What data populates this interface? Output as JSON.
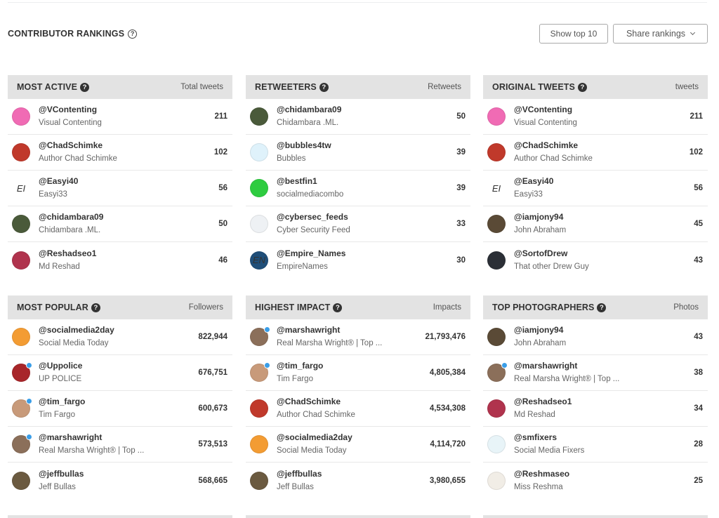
{
  "header": {
    "title": "CONTRIBUTOR RANKINGS",
    "show_top_label": "Show top 10",
    "share_label": "Share rankings"
  },
  "panels": [
    {
      "title": "MOST ACTIVE",
      "metric": "Total tweets",
      "rows": [
        {
          "handle": "@VContenting",
          "name": "Visual Contenting",
          "count": "211",
          "avatar_color": "#f06bb4",
          "avatar_text": "",
          "verified": false
        },
        {
          "handle": "@ChadSchimke",
          "name": "Author Chad Schimke",
          "count": "102",
          "avatar_color": "#c0392b",
          "avatar_text": "",
          "verified": false
        },
        {
          "handle": "@Easyi40",
          "name": "Easyi33",
          "count": "56",
          "avatar_color": "#ffffff",
          "avatar_text": "EI",
          "verified": false
        },
        {
          "handle": "@chidambara09",
          "name": "Chidambara .ML.",
          "count": "50",
          "avatar_color": "#4a5a3a",
          "avatar_text": "",
          "verified": false
        },
        {
          "handle": "@Reshadseo1",
          "name": "Md Reshad",
          "count": "46",
          "avatar_color": "#b0334d",
          "avatar_text": "",
          "verified": false
        }
      ]
    },
    {
      "title": "RETWEETERS",
      "metric": "Retweets",
      "rows": [
        {
          "handle": "@chidambara09",
          "name": "Chidambara .ML.",
          "count": "50",
          "avatar_color": "#4a5a3a",
          "avatar_text": "",
          "verified": false
        },
        {
          "handle": "@bubbles4tw",
          "name": "Bubbles",
          "count": "39",
          "avatar_color": "#dff2fb",
          "avatar_text": "",
          "verified": false
        },
        {
          "handle": "@bestfin1",
          "name": "socialmediacombo",
          "count": "39",
          "avatar_color": "#2ecc40",
          "avatar_text": "",
          "verified": false
        },
        {
          "handle": "@cybersec_feeds",
          "name": "Cyber Security Feed",
          "count": "33",
          "avatar_color": "#eef1f4",
          "avatar_text": "",
          "verified": false
        },
        {
          "handle": "@Empire_Names",
          "name": "EmpireNames",
          "count": "30",
          "avatar_color": "#1f4e79",
          "avatar_text": "EN",
          "verified": false
        }
      ]
    },
    {
      "title": "ORIGINAL TWEETS",
      "metric": "tweets",
      "rows": [
        {
          "handle": "@VContenting",
          "name": "Visual Contenting",
          "count": "211",
          "avatar_color": "#f06bb4",
          "avatar_text": "",
          "verified": false
        },
        {
          "handle": "@ChadSchimke",
          "name": "Author Chad Schimke",
          "count": "102",
          "avatar_color": "#c0392b",
          "avatar_text": "",
          "verified": false
        },
        {
          "handle": "@Easyi40",
          "name": "Easyi33",
          "count": "56",
          "avatar_color": "#ffffff",
          "avatar_text": "EI",
          "verified": false
        },
        {
          "handle": "@iamjony94",
          "name": "John Abraham",
          "count": "45",
          "avatar_color": "#5a4a36",
          "avatar_text": "",
          "verified": false
        },
        {
          "handle": "@SortofDrew",
          "name": "That other Drew Guy",
          "count": "43",
          "avatar_color": "#2b2f36",
          "avatar_text": "",
          "verified": false
        }
      ]
    },
    {
      "title": "MOST POPULAR",
      "metric": "Followers",
      "rows": [
        {
          "handle": "@socialmedia2day",
          "name": "Social Media Today",
          "count": "822,944",
          "avatar_color": "#f39c33",
          "avatar_text": "",
          "verified": false
        },
        {
          "handle": "@Uppolice",
          "name": "UP POLICE",
          "count": "676,751",
          "avatar_color": "#a8262a",
          "avatar_text": "",
          "verified": true
        },
        {
          "handle": "@tim_fargo",
          "name": "Tim Fargo",
          "count": "600,673",
          "avatar_color": "#c89a7a",
          "avatar_text": "",
          "verified": true
        },
        {
          "handle": "@marshawright",
          "name": "Real Marsha Wright® | Top ...",
          "count": "573,513",
          "avatar_color": "#8b6f5a",
          "avatar_text": "",
          "verified": true
        },
        {
          "handle": "@jeffbullas",
          "name": "Jeff Bullas",
          "count": "568,665",
          "avatar_color": "#6b5a40",
          "avatar_text": "",
          "verified": false
        }
      ]
    },
    {
      "title": "HIGHEST IMPACT",
      "metric": "Impacts",
      "rows": [
        {
          "handle": "@marshawright",
          "name": "Real Marsha Wright® | Top ...",
          "count": "21,793,476",
          "avatar_color": "#8b6f5a",
          "avatar_text": "",
          "verified": true
        },
        {
          "handle": "@tim_fargo",
          "name": "Tim Fargo",
          "count": "4,805,384",
          "avatar_color": "#c89a7a",
          "avatar_text": "",
          "verified": true
        },
        {
          "handle": "@ChadSchimke",
          "name": "Author Chad Schimke",
          "count": "4,534,308",
          "avatar_color": "#c0392b",
          "avatar_text": "",
          "verified": false
        },
        {
          "handle": "@socialmedia2day",
          "name": "Social Media Today",
          "count": "4,114,720",
          "avatar_color": "#f39c33",
          "avatar_text": "",
          "verified": false
        },
        {
          "handle": "@jeffbullas",
          "name": "Jeff Bullas",
          "count": "3,980,655",
          "avatar_color": "#6b5a40",
          "avatar_text": "",
          "verified": false
        }
      ]
    },
    {
      "title": "TOP PHOTOGRAPHERS",
      "metric": "Photos",
      "rows": [
        {
          "handle": "@iamjony94",
          "name": "John Abraham",
          "count": "43",
          "avatar_color": "#5a4a36",
          "avatar_text": "",
          "verified": false
        },
        {
          "handle": "@marshawright",
          "name": "Real Marsha Wright® | Top ...",
          "count": "38",
          "avatar_color": "#8b6f5a",
          "avatar_text": "",
          "verified": true
        },
        {
          "handle": "@Reshadseo1",
          "name": "Md Reshad",
          "count": "34",
          "avatar_color": "#b0334d",
          "avatar_text": "",
          "verified": false
        },
        {
          "handle": "@smfixers",
          "name": "Social Media Fixers",
          "count": "28",
          "avatar_color": "#e8f4f8",
          "avatar_text": "",
          "verified": false
        },
        {
          "handle": "@Reshmaseo",
          "name": "Miss Reshma",
          "count": "25",
          "avatar_color": "#f1ede6",
          "avatar_text": "",
          "verified": false
        }
      ]
    }
  ]
}
